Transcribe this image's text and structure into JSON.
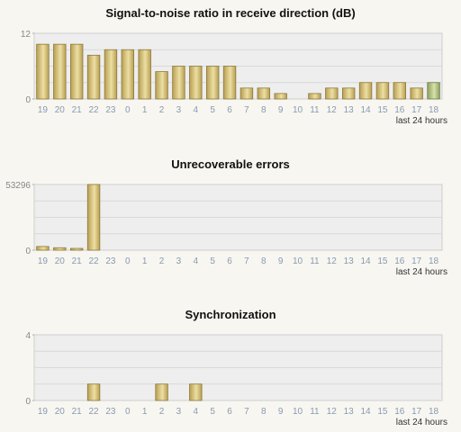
{
  "colors": {
    "bar_fill_dark": "#b89e52",
    "bar_fill_light": "#ecdfa3",
    "bar_highlight_dark": "#8f9f62",
    "bar_highlight_light": "#d6e2a8",
    "plot_bg": "#eeeeee",
    "grid": "#d9d9d9",
    "tick_text": "#8a9ab0"
  },
  "chart_data": [
    {
      "type": "bar",
      "title": "Signal-to-noise ratio in receive direction (dB)",
      "xlabel": "last 24 hours",
      "ylabel": "",
      "categories": [
        "19",
        "20",
        "21",
        "22",
        "23",
        "0",
        "1",
        "2",
        "3",
        "4",
        "5",
        "6",
        "7",
        "8",
        "9",
        "10",
        "11",
        "12",
        "13",
        "14",
        "15",
        "16",
        "17",
        "18"
      ],
      "values": [
        10,
        10,
        10,
        8,
        9,
        9,
        9,
        5,
        6,
        6,
        6,
        6,
        2,
        2,
        1,
        0,
        1,
        2,
        2,
        3,
        3,
        3,
        2,
        3
      ],
      "ylim": [
        0,
        12
      ],
      "yticks": [
        0,
        12
      ],
      "highlight_index": 23,
      "grid": true
    },
    {
      "type": "bar",
      "title": "Unrecoverable errors",
      "xlabel": "last 24 hours",
      "ylabel": "",
      "categories": [
        "19",
        "20",
        "21",
        "22",
        "23",
        "0",
        "1",
        "2",
        "3",
        "4",
        "5",
        "6",
        "7",
        "8",
        "9",
        "10",
        "11",
        "12",
        "13",
        "14",
        "15",
        "16",
        "17",
        "18"
      ],
      "values": [
        3000,
        2000,
        700,
        53296,
        0,
        0,
        0,
        0,
        0,
        0,
        0,
        0,
        0,
        0,
        0,
        0,
        0,
        0,
        0,
        0,
        0,
        0,
        0,
        0
      ],
      "ylim": [
        0,
        53296
      ],
      "yticks": [
        0,
        53296
      ],
      "highlight_index": null,
      "grid": true
    },
    {
      "type": "bar",
      "title": "Synchronization",
      "xlabel": "last 24 hours",
      "ylabel": "",
      "categories": [
        "19",
        "20",
        "21",
        "22",
        "23",
        "0",
        "1",
        "2",
        "3",
        "4",
        "5",
        "6",
        "7",
        "8",
        "9",
        "10",
        "11",
        "12",
        "13",
        "14",
        "15",
        "16",
        "17",
        "18"
      ],
      "values": [
        0,
        0,
        0,
        1,
        0,
        0,
        0,
        1,
        0,
        1,
        0,
        0,
        0,
        0,
        0,
        0,
        0,
        0,
        0,
        0,
        0,
        0,
        0,
        0
      ],
      "ylim": [
        0,
        4
      ],
      "yticks": [
        0,
        4
      ],
      "highlight_index": null,
      "grid": true
    }
  ]
}
